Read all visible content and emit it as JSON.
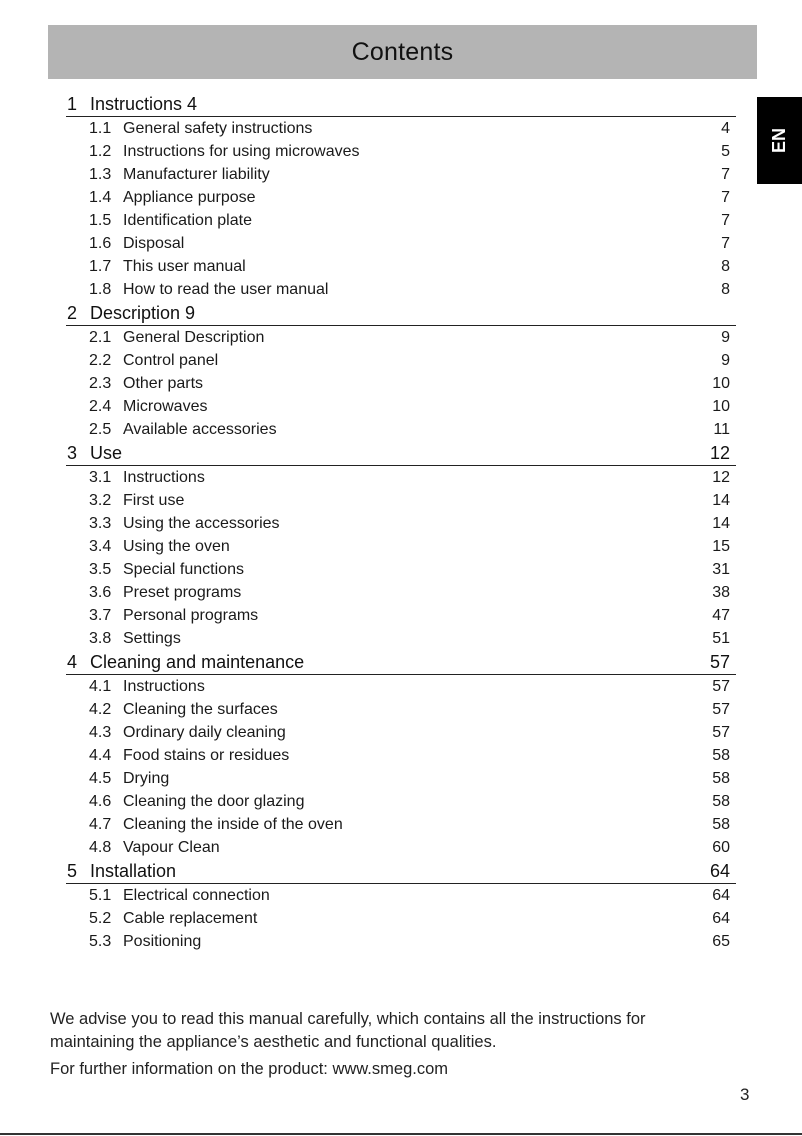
{
  "header": {
    "title": "Contents"
  },
  "language_tab": "EN",
  "toc": [
    {
      "num": "1",
      "title": "Instructions 4",
      "page": "",
      "entries": [
        {
          "num": "1.1",
          "title": "General safety instructions",
          "page": "4"
        },
        {
          "num": "1.2",
          "title": "Instructions for using microwaves",
          "page": "5"
        },
        {
          "num": "1.3",
          "title": "Manufacturer liability",
          "page": "7"
        },
        {
          "num": "1.4",
          "title": "Appliance purpose",
          "page": "7"
        },
        {
          "num": "1.5",
          "title": "Identification plate",
          "page": "7"
        },
        {
          "num": "1.6",
          "title": "Disposal",
          "page": "7"
        },
        {
          "num": "1.7",
          "title": "This user manual",
          "page": "8"
        },
        {
          "num": "1.8",
          "title": "How to read the user manual",
          "page": "8"
        }
      ]
    },
    {
      "num": "2",
      "title": "Description 9",
      "page": "",
      "entries": [
        {
          "num": "2.1",
          "title": "General Description",
          "page": "9"
        },
        {
          "num": "2.2",
          "title": "Control panel",
          "page": "9"
        },
        {
          "num": "2.3",
          "title": "Other parts",
          "page": "10"
        },
        {
          "num": "2.4",
          "title": "Microwaves",
          "page": "10"
        },
        {
          "num": "2.5",
          "title": "Available accessories",
          "page": "11"
        }
      ]
    },
    {
      "num": "3",
      "title": "Use",
      "page": "12",
      "entries": [
        {
          "num": "3.1",
          "title": "Instructions",
          "page": "12"
        },
        {
          "num": "3.2",
          "title": "First use",
          "page": "14"
        },
        {
          "num": "3.3",
          "title": "Using the accessories",
          "page": "14"
        },
        {
          "num": "3.4",
          "title": "Using the oven",
          "page": "15"
        },
        {
          "num": "3.5",
          "title": "Special functions",
          "page": "31"
        },
        {
          "num": "3.6",
          "title": "Preset programs",
          "page": "38"
        },
        {
          "num": "3.7",
          "title": "Personal programs",
          "page": "47"
        },
        {
          "num": "3.8",
          "title": "Settings",
          "page": "51"
        }
      ]
    },
    {
      "num": "4",
      "title": "Cleaning and maintenance",
      "page": "57",
      "entries": [
        {
          "num": "4.1",
          "title": "Instructions",
          "page": "57"
        },
        {
          "num": "4.2",
          "title": "Cleaning the surfaces",
          "page": "57"
        },
        {
          "num": "4.3",
          "title": "Ordinary daily cleaning",
          "page": "57"
        },
        {
          "num": "4.4",
          "title": "Food stains or residues",
          "page": "58"
        },
        {
          "num": "4.5",
          "title": "Drying",
          "page": "58"
        },
        {
          "num": "4.6",
          "title": "Cleaning the door glazing",
          "page": "58"
        },
        {
          "num": "4.7",
          "title": "Cleaning the inside of the oven",
          "page": "58"
        },
        {
          "num": "4.8",
          "title": "Vapour Clean",
          "page": "60"
        }
      ]
    },
    {
      "num": "5",
      "title": "Installation",
      "page": "64",
      "entries": [
        {
          "num": "5.1",
          "title": "Electrical connection",
          "page": "64"
        },
        {
          "num": "5.2",
          "title": "Cable replacement",
          "page": "64"
        },
        {
          "num": "5.3",
          "title": "Positioning",
          "page": "65"
        }
      ]
    }
  ],
  "footer": {
    "advice": "We advise you to read this manual carefully, which contains all the instructions for maintaining the appliance’s aesthetic and functional qualities.",
    "info": "For further information on the product: www.smeg.com"
  },
  "page_number": "3"
}
